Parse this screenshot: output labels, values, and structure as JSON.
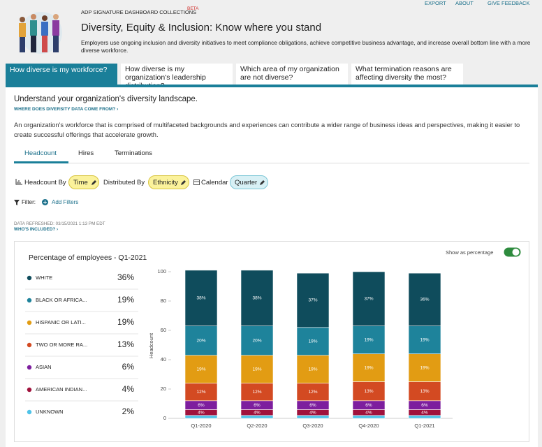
{
  "header": {
    "links": [
      "EXPORT",
      "ABOUT",
      "GIVE FEEDBACK"
    ],
    "collection": "ADP SIGNATURE DASHBOARD COLLECTIONS",
    "badge": "BETA",
    "title": "Diversity, Equity & Inclusion: Know where you stand",
    "description": "Employers use ongoing inclusion and diversity initiatives to meet compliance obligations, achieve competitive business advantage, and increase overall bottom line with a more diverse workforce."
  },
  "tabs": [
    "How diverse is my workforce?",
    "How diverse is my organization's leadership distribution?",
    "Which area of my organization are not diverse?",
    "What termination reasons are affecting diversity the most?"
  ],
  "section": {
    "heading": "Understand your organization's diversity landscape.",
    "source_link": "WHERE DOES DIVERSITY DATA COME FROM? ›",
    "intro": "An organization's workforce that is comprised of multifaceted backgrounds and experiences can contribute a wider range of business ideas and perspectives, making it easier to create successful offerings that accelerate growth."
  },
  "subtabs": [
    "Headcount",
    "Hires",
    "Terminations"
  ],
  "controls": {
    "headcount_by": "Headcount By",
    "time": "Time",
    "distributed_by": "Distributed By",
    "ethnicity": "Ethnicity",
    "calendar": "Calendar",
    "quarter": "Quarter"
  },
  "filter": {
    "label": "Filter:",
    "add": "Add Filters"
  },
  "refresh": {
    "text": "DATA REFRESHED: 03/15/2021 1:13 PM EDT",
    "link": "WHO'S INCLUDED? ›"
  },
  "panel": {
    "title": "Percentage of employees - Q1-2021",
    "toggle": "Show as percentage"
  },
  "chart_data": {
    "type": "stacked_bar",
    "y_label": "Headcount",
    "categories": [
      "Q1-2020",
      "Q2-2020",
      "Q3-2020",
      "Q4-2020",
      "Q1-2021"
    ],
    "ylim": [
      0,
      100
    ],
    "yticks": [
      0,
      20,
      40,
      60,
      80,
      100
    ],
    "series": [
      {
        "name": "WHITE",
        "color": "#0f4c5c",
        "share_label": "36%",
        "values": [
          38,
          38,
          37,
          37,
          36
        ],
        "value_labels": [
          "38%",
          "38%",
          "37%",
          "37%",
          "36%"
        ]
      },
      {
        "name": "BLACK OR AFRICA...",
        "color": "#1e839b",
        "share_label": "19%",
        "values": [
          20,
          20,
          19,
          19,
          19
        ],
        "value_labels": [
          "20%",
          "20%",
          "19%",
          "19%",
          "19%"
        ]
      },
      {
        "name": "HISPANIC OR LATI...",
        "color": "#e29c13",
        "share_label": "19%",
        "values": [
          19,
          19,
          19,
          19,
          19
        ],
        "value_labels": [
          "19%",
          "19%",
          "19%",
          "19%",
          "19%"
        ]
      },
      {
        "name": "TWO OR MORE RA...",
        "color": "#d34a22",
        "share_label": "13%",
        "values": [
          12,
          12,
          12,
          13,
          13
        ],
        "value_labels": [
          "12%",
          "12%",
          "12%",
          "13%",
          "13%"
        ]
      },
      {
        "name": "ASIAN",
        "color": "#7d1e9e",
        "share_label": "6%",
        "values": [
          6,
          6,
          6,
          6,
          6
        ],
        "value_labels": [
          "6%",
          "6%",
          "6%",
          "6%",
          "6%"
        ]
      },
      {
        "name": "AMERICAN INDIAN...",
        "color": "#a0123c",
        "share_label": "4%",
        "values": [
          4,
          4,
          4,
          4,
          4
        ],
        "value_labels": [
          "4%",
          "4%",
          "4%",
          "4%",
          "4%"
        ]
      },
      {
        "name": "UNKNOWN",
        "color": "#4fc3e8",
        "share_label": "2%",
        "values": [
          2,
          2,
          2,
          2,
          2
        ]
      }
    ]
  }
}
